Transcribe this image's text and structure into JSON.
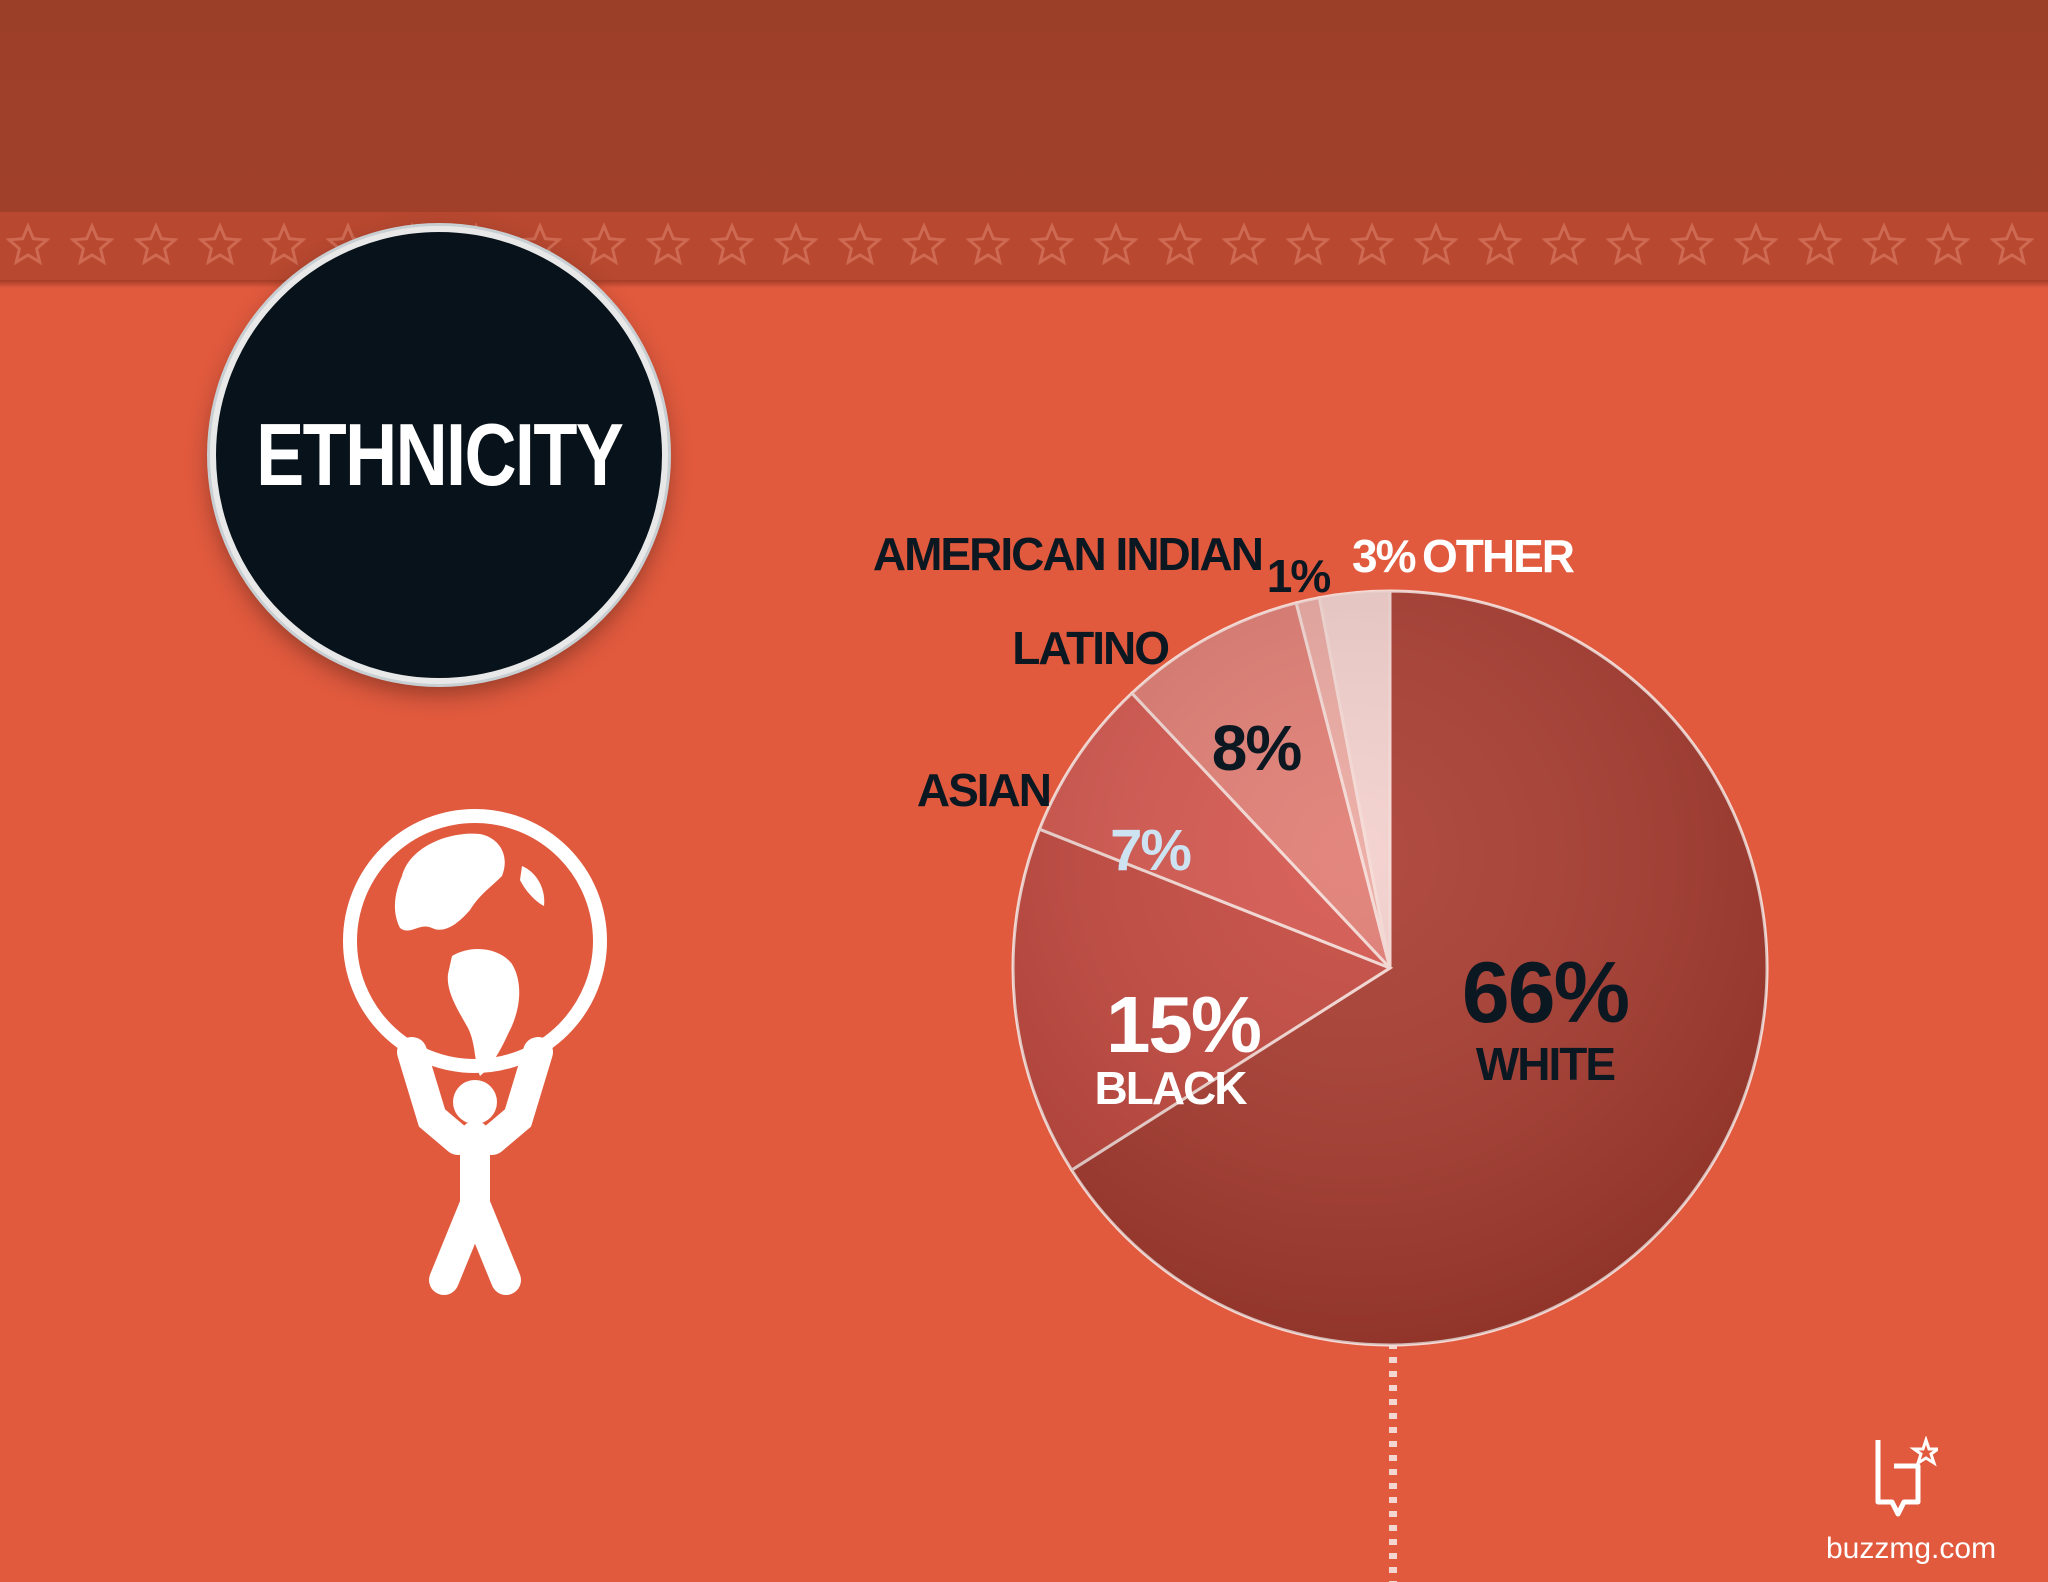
{
  "page": {
    "title": "ETHNICITY",
    "footer_text": "buzzmg.com"
  },
  "colors": {
    "background": "#e15a3e",
    "top_band": "#9c3f29",
    "badge": "#07121a",
    "dark_label": "#0b1821",
    "light_label": "#ffffff",
    "asian_label": "#cde3f2"
  },
  "icons": {
    "hero": "atlas-globe-icon",
    "logo": "buzz-logo-icon"
  },
  "chart_data": {
    "type": "pie",
    "title": "",
    "slices": [
      {
        "label": "WHITE",
        "value": 66,
        "value_label": "66%",
        "color": "#a8382c",
        "text_color": "#0b1821"
      },
      {
        "label": "BLACK",
        "value": 15,
        "value_label": "15%",
        "color": "#c4453b",
        "text_color": "#ffffff"
      },
      {
        "label": "ASIAN",
        "value": 7,
        "value_label": "7%",
        "color": "#d4534a",
        "text_color": "#cde3f2"
      },
      {
        "label": "LATINO",
        "value": 8,
        "value_label": "8%",
        "color": "#e07a70",
        "text_color": "#0b1821"
      },
      {
        "label": "AMERICAN INDIAN",
        "value": 1,
        "value_label": "1%",
        "color": "#eba79f",
        "text_color": "#0b1821"
      },
      {
        "label": "OTHER",
        "value": 3,
        "value_label": "3%",
        "color": "#f3cfcb",
        "text_color": "#ffffff"
      }
    ],
    "start": "12 o'clock",
    "direction": "clockwise",
    "legend": "none"
  }
}
